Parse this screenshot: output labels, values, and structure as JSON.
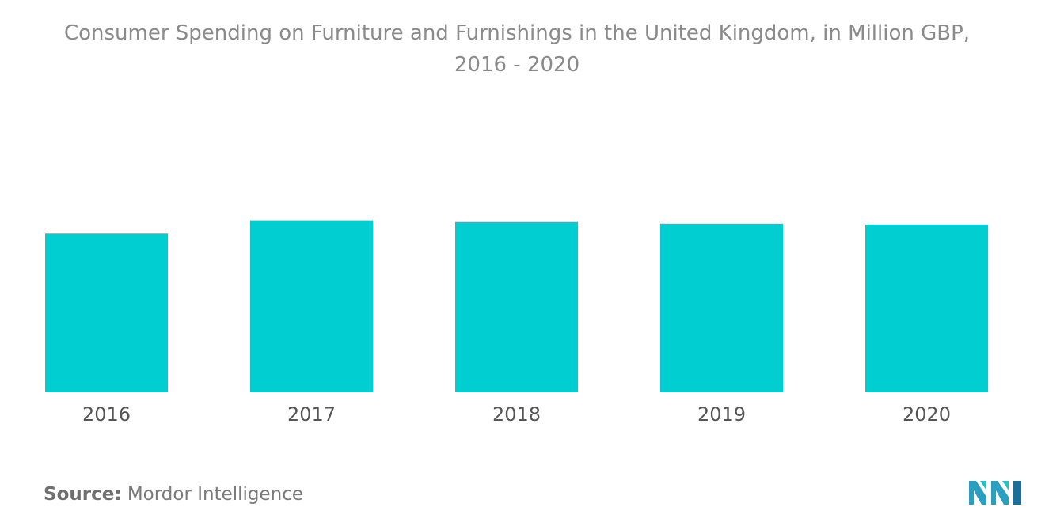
{
  "title_line1": "Consumer Spending on Furniture and Furnishings in the United Kingdom, in Million GBP,",
  "title_line2": "2016 - 2020",
  "source": {
    "label": "Source:",
    "value": "Mordor Intelligence"
  },
  "colors": {
    "bar": "#00CED1",
    "title": "#8a8a8a",
    "tick": "#555555"
  },
  "logo_icon": "mordor-intelligence-logo-icon",
  "chart_data": {
    "type": "bar",
    "title": "Consumer Spending on Furniture and Furnishings in the United Kingdom, in Million GBP, 2016 - 2020",
    "categories": [
      "2016",
      "2017",
      "2018",
      "2019",
      "2020"
    ],
    "values": [
      193,
      209,
      207,
      205,
      204
    ],
    "xlabel": "",
    "ylabel": "",
    "ylim": [
      0,
      250
    ],
    "grid": false,
    "legend": "none"
  }
}
